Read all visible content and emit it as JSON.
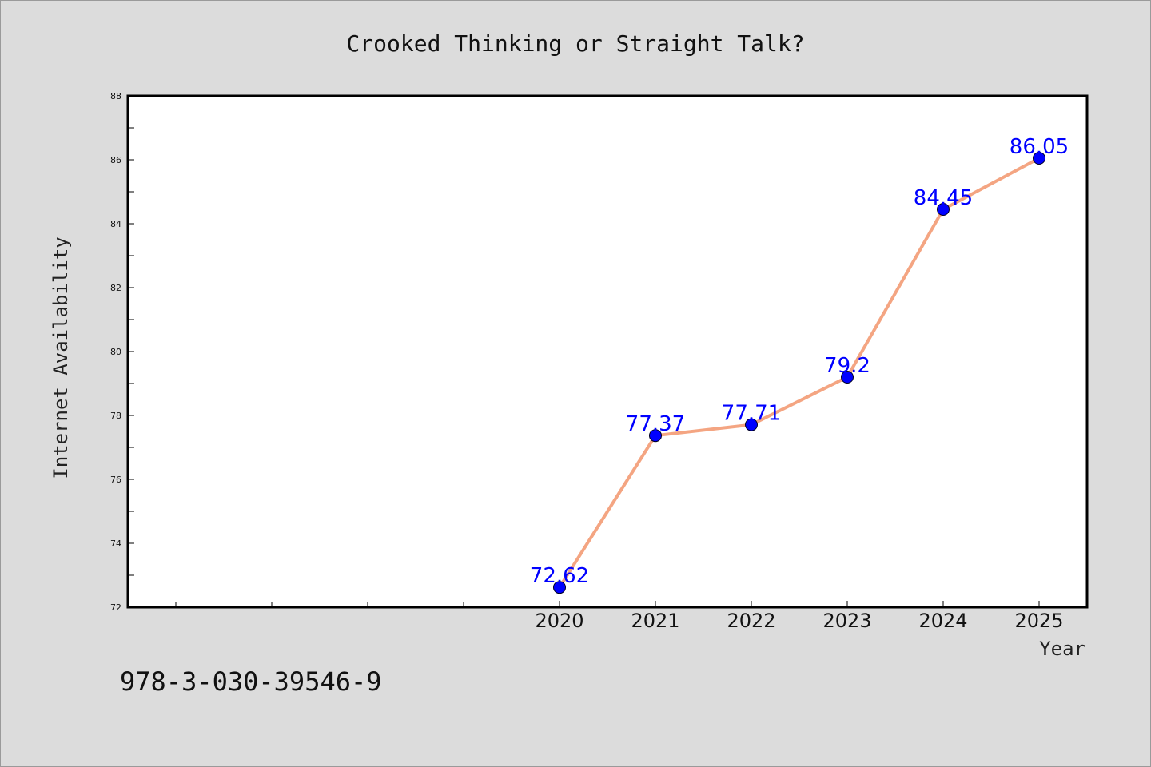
{
  "chart_data": {
    "type": "line",
    "title": "Crooked Thinking or Straight Talk?",
    "xlabel": "Year",
    "ylabel": "Internet Availability",
    "categories": [
      "2020",
      "2021",
      "2022",
      "2023",
      "2024",
      "2025"
    ],
    "series": [
      {
        "values": [
          72.62,
          77.37,
          77.71,
          79.2,
          84.45,
          86.05
        ],
        "labels": [
          "72.62",
          "77.37",
          "77.71",
          "79.2",
          "84.45",
          "86.05"
        ],
        "line_color": "#f4a582",
        "marker_color": "#0000ff"
      }
    ],
    "ylim": [
      72,
      88
    ],
    "yticks": [
      "72",
      "74",
      "76",
      "78",
      "80",
      "82",
      "84",
      "86",
      "88"
    ],
    "grid": false,
    "legend": "none"
  },
  "footnote": "978-3-030-39546-9",
  "colors": {
    "background": "#dcdcdc",
    "plot_area": "#ffffff",
    "data_label": "#0000ff"
  }
}
